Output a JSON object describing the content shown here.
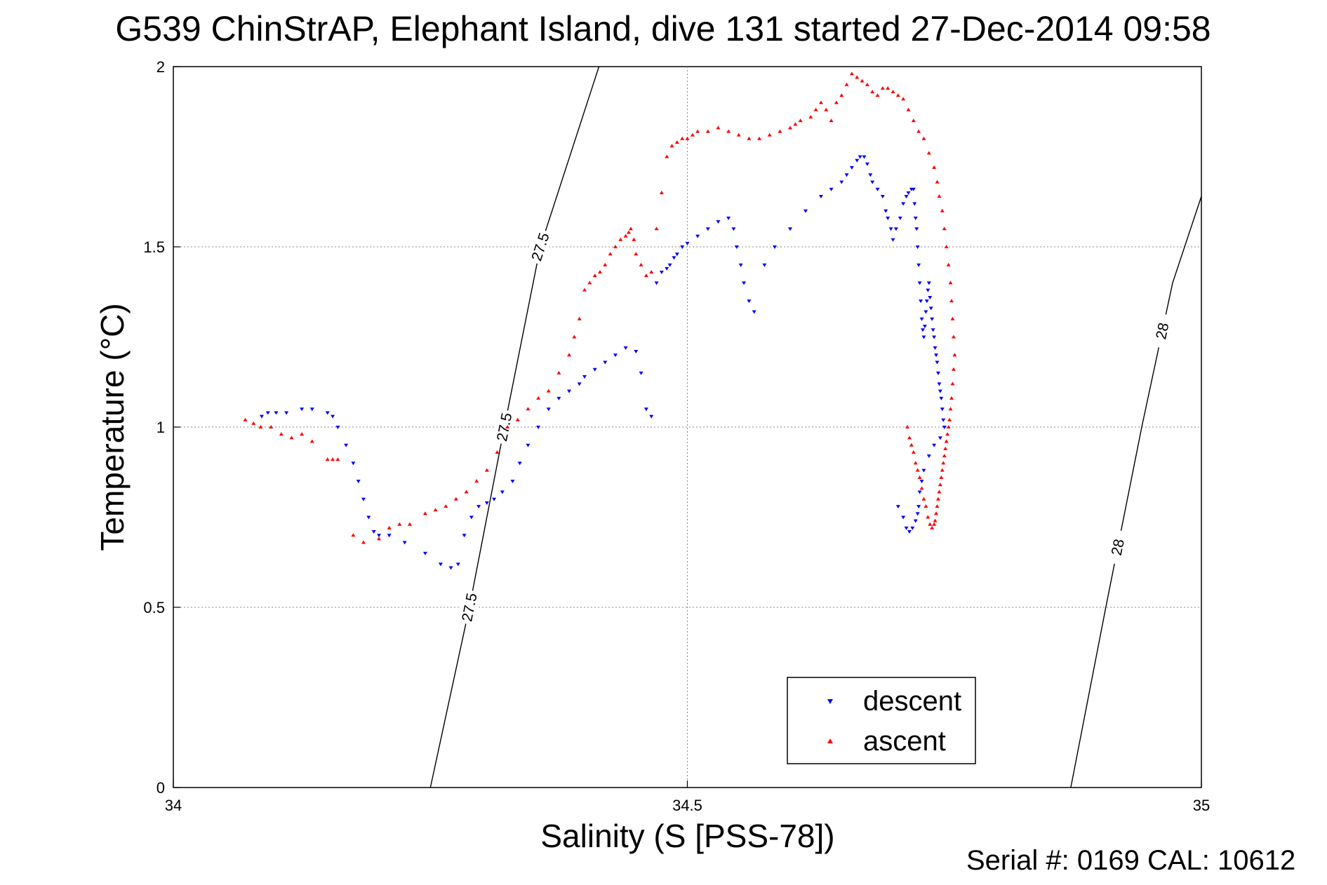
{
  "chart_data": {
    "type": "scatter",
    "title": "G539 ChinStrAP, Elephant Island, dive 131 started 27-Dec-2014 09:58",
    "xlabel": "Salinity (S [PSS-78])",
    "ylabel": "Temperature (°C)",
    "footer": "Serial #: 0169 CAL: 10612",
    "xlim": [
      34,
      35
    ],
    "ylim": [
      0,
      2
    ],
    "xticks": [
      "34",
      "34.5",
      "35"
    ],
    "yticks": [
      "0",
      "0.5",
      "1",
      "1.5",
      "2"
    ],
    "grid": true,
    "legend_position": "bottom-right",
    "legend": [
      "descent",
      "ascent"
    ],
    "colors": {
      "descent": "#0000ff",
      "ascent": "#ff0000",
      "isopycnal": "#000000"
    },
    "isopycnals": [
      {
        "sigma": 27.5,
        "labels": [
          "27.5",
          "27.5",
          "27.5"
        ],
        "points": [
          [
            34.25,
            0.0
          ],
          [
            34.288,
            0.5
          ],
          [
            34.322,
            1.0
          ],
          [
            34.357,
            1.5
          ],
          [
            34.414,
            2.0
          ]
        ]
      },
      {
        "sigma": 28,
        "labels": [
          "28",
          "28"
        ],
        "points": [
          [
            34.873,
            0.0
          ],
          [
            34.907,
            0.5
          ],
          [
            34.942,
            1.0
          ],
          [
            34.972,
            1.4
          ],
          [
            35.0,
            1.64
          ]
        ]
      }
    ],
    "series": [
      {
        "name": "descent",
        "marker": "triangle-down",
        "color": "#0000ff",
        "x": [
          34.086,
          34.092,
          34.1,
          34.11,
          34.125,
          34.135,
          34.15,
          34.155,
          34.16,
          34.168,
          34.175,
          34.18,
          34.185,
          34.19,
          34.195,
          34.2,
          34.21,
          34.225,
          34.245,
          34.26,
          34.27,
          34.277,
          34.283,
          34.29,
          34.297,
          34.305,
          34.312,
          34.32,
          34.33,
          34.337,
          34.345,
          34.355,
          34.365,
          34.375,
          34.385,
          34.395,
          34.4,
          34.41,
          34.42,
          34.43,
          34.44,
          34.45,
          34.455,
          34.46,
          34.465,
          34.47,
          34.475,
          34.48,
          34.483,
          34.487,
          34.49,
          34.495,
          34.5,
          34.51,
          34.52,
          34.53,
          34.54,
          34.545,
          34.548,
          34.552,
          34.555,
          34.56,
          34.565,
          34.575,
          34.585,
          34.6,
          34.615,
          34.63,
          34.64,
          34.65,
          34.655,
          34.66,
          34.665,
          34.668,
          34.672,
          34.675,
          34.678,
          34.68,
          34.685,
          34.69,
          34.693,
          34.695,
          34.698,
          34.7,
          34.703,
          34.707,
          34.71,
          34.713,
          34.715,
          34.718,
          34.72,
          34.721,
          34.722,
          34.723,
          34.724,
          34.725,
          34.726,
          34.727,
          34.728,
          34.729,
          34.73,
          34.731,
          34.732,
          34.733,
          34.734,
          34.735,
          34.736,
          34.737,
          34.738,
          34.739,
          34.74,
          34.741,
          34.742,
          34.743,
          34.744,
          34.745,
          34.746,
          34.747,
          34.748,
          34.749,
          34.75,
          34.746,
          34.74,
          34.735,
          34.73,
          34.728,
          34.726,
          34.725,
          34.724,
          34.722,
          34.719,
          34.716,
          34.713,
          34.71,
          34.705
        ],
        "y": [
          1.03,
          1.04,
          1.04,
          1.04,
          1.05,
          1.05,
          1.04,
          1.03,
          1.0,
          0.95,
          0.9,
          0.85,
          0.8,
          0.75,
          0.71,
          0.7,
          0.7,
          0.68,
          0.65,
          0.62,
          0.61,
          0.62,
          0.7,
          0.75,
          0.78,
          0.79,
          0.8,
          0.82,
          0.85,
          0.9,
          0.95,
          1.0,
          1.05,
          1.08,
          1.1,
          1.12,
          1.14,
          1.16,
          1.18,
          1.2,
          1.22,
          1.21,
          1.15,
          1.05,
          1.03,
          1.4,
          1.43,
          1.44,
          1.45,
          1.47,
          1.48,
          1.5,
          1.51,
          1.53,
          1.55,
          1.57,
          1.58,
          1.55,
          1.5,
          1.45,
          1.4,
          1.35,
          1.32,
          1.45,
          1.5,
          1.55,
          1.6,
          1.64,
          1.66,
          1.68,
          1.7,
          1.72,
          1.74,
          1.75,
          1.75,
          1.73,
          1.7,
          1.68,
          1.66,
          1.64,
          1.6,
          1.58,
          1.55,
          1.52,
          1.55,
          1.58,
          1.62,
          1.64,
          1.65,
          1.66,
          1.66,
          1.62,
          1.58,
          1.55,
          1.5,
          1.45,
          1.4,
          1.35,
          1.3,
          1.27,
          1.25,
          1.28,
          1.32,
          1.35,
          1.38,
          1.4,
          1.36,
          1.33,
          1.3,
          1.27,
          1.25,
          1.22,
          1.2,
          1.18,
          1.15,
          1.12,
          1.1,
          1.08,
          1.05,
          1.02,
          1.0,
          0.97,
          0.95,
          0.92,
          0.88,
          0.85,
          0.82,
          0.78,
          0.76,
          0.74,
          0.72,
          0.71,
          0.72,
          0.75,
          0.78
        ],
        "isopycnal_color": "#000000"
      },
      {
        "name": "ascent",
        "marker": "triangle-up",
        "color": "#ff0000",
        "x": [
          34.07,
          34.078,
          34.085,
          34.095,
          34.105,
          34.115,
          34.125,
          34.135,
          34.15,
          34.155,
          34.16,
          34.175,
          34.185,
          34.2,
          34.21,
          34.22,
          34.23,
          34.245,
          34.255,
          34.265,
          34.275,
          34.285,
          34.295,
          34.305,
          34.315,
          34.325,
          34.335,
          34.345,
          34.355,
          34.365,
          34.375,
          34.385,
          34.39,
          34.395,
          34.4,
          34.405,
          34.41,
          34.415,
          34.42,
          34.425,
          34.43,
          34.435,
          34.44,
          34.443,
          34.445,
          34.448,
          34.45,
          34.455,
          34.46,
          34.465,
          34.47,
          34.475,
          34.48,
          34.485,
          34.49,
          34.495,
          34.5,
          34.505,
          34.51,
          34.52,
          34.53,
          34.54,
          34.55,
          34.56,
          34.57,
          34.58,
          34.59,
          34.6,
          34.605,
          34.61,
          34.62,
          34.625,
          34.63,
          34.635,
          34.64,
          34.645,
          34.65,
          34.655,
          34.66,
          34.665,
          34.67,
          34.675,
          34.68,
          34.685,
          34.69,
          34.695,
          34.7,
          34.705,
          34.71,
          34.715,
          34.72,
          34.725,
          34.73,
          34.735,
          34.74,
          34.743,
          34.745,
          34.748,
          34.75,
          34.752,
          34.754,
          34.756,
          34.757,
          34.758,
          34.759,
          34.76,
          34.759,
          34.758,
          34.757,
          34.756,
          34.755,
          34.754,
          34.753,
          34.752,
          34.751,
          34.75,
          34.749,
          34.748,
          34.747,
          34.746,
          34.745,
          34.744,
          34.743,
          34.742,
          34.741,
          34.74,
          34.738,
          34.736,
          34.734,
          34.732,
          34.73,
          34.728,
          34.726,
          34.724,
          34.722,
          34.72,
          34.718,
          34.716,
          34.714
        ],
        "y": [
          1.02,
          1.01,
          1.0,
          1.0,
          0.98,
          0.97,
          0.98,
          0.96,
          0.91,
          0.91,
          0.91,
          0.7,
          0.68,
          0.69,
          0.72,
          0.73,
          0.73,
          0.76,
          0.77,
          0.78,
          0.8,
          0.82,
          0.85,
          0.88,
          0.93,
          1.0,
          1.02,
          1.05,
          1.08,
          1.1,
          1.15,
          1.2,
          1.25,
          1.3,
          1.38,
          1.4,
          1.42,
          1.43,
          1.45,
          1.48,
          1.5,
          1.52,
          1.53,
          1.54,
          1.55,
          1.52,
          1.48,
          1.45,
          1.42,
          1.43,
          1.55,
          1.65,
          1.75,
          1.78,
          1.79,
          1.8,
          1.8,
          1.81,
          1.82,
          1.82,
          1.83,
          1.82,
          1.81,
          1.8,
          1.8,
          1.81,
          1.82,
          1.83,
          1.84,
          1.85,
          1.86,
          1.88,
          1.9,
          1.88,
          1.85,
          1.9,
          1.92,
          1.95,
          1.98,
          1.97,
          1.96,
          1.95,
          1.93,
          1.92,
          1.94,
          1.94,
          1.93,
          1.92,
          1.91,
          1.88,
          1.85,
          1.82,
          1.8,
          1.76,
          1.72,
          1.68,
          1.64,
          1.6,
          1.55,
          1.5,
          1.45,
          1.4,
          1.35,
          1.3,
          1.25,
          1.2,
          1.16,
          1.12,
          1.08,
          1.05,
          1.02,
          1.0,
          0.98,
          0.96,
          0.94,
          0.92,
          0.9,
          0.88,
          0.86,
          0.84,
          0.82,
          0.8,
          0.78,
          0.76,
          0.74,
          0.73,
          0.72,
          0.73,
          0.75,
          0.78,
          0.8,
          0.83,
          0.86,
          0.88,
          0.9,
          0.93,
          0.95,
          0.97,
          1.0
        ]
      }
    ]
  }
}
